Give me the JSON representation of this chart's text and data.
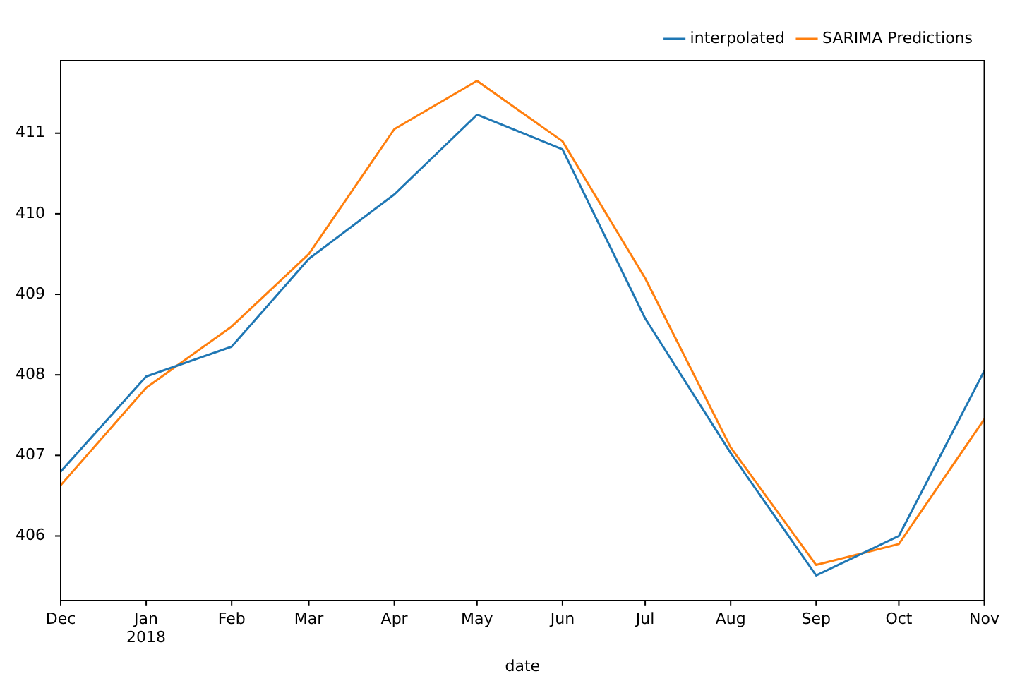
{
  "chart_data": {
    "type": "line",
    "xlabel": "date",
    "x": [
      "2017-12",
      "2018-01",
      "2018-02",
      "2018-03",
      "2018-04",
      "2018-05",
      "2018-06",
      "2018-07",
      "2018-08",
      "2018-09",
      "2018-10",
      "2018-11"
    ],
    "xlim": [
      "2017-12",
      "2018-11"
    ],
    "xticks": [
      {
        "value": "2017-12",
        "label": "Dec"
      },
      {
        "value": "2018-01",
        "label": "Jan 2018"
      },
      {
        "value": "2018-02",
        "label": "Feb"
      },
      {
        "value": "2018-03",
        "label": "Mar"
      },
      {
        "value": "2018-04",
        "label": "Apr"
      },
      {
        "value": "2018-05",
        "label": "May"
      },
      {
        "value": "2018-06",
        "label": "Jun"
      },
      {
        "value": "2018-07",
        "label": "Jul"
      },
      {
        "value": "2018-08",
        "label": "Aug"
      },
      {
        "value": "2018-09",
        "label": "Sep"
      },
      {
        "value": "2018-10",
        "label": "Oct"
      },
      {
        "value": "2018-11",
        "label": "Nov"
      }
    ],
    "series": [
      {
        "name": "interpolated",
        "color": "#1f77b4",
        "values": [
          406.8,
          407.98,
          408.35,
          409.44,
          410.24,
          411.23,
          410.8,
          408.7,
          407.03,
          405.51,
          406.0,
          408.05
        ]
      },
      {
        "name": "SARIMA Predictions",
        "color": "#ff7f0e",
        "values": [
          406.63,
          407.84,
          408.6,
          409.5,
          411.05,
          411.65,
          410.9,
          409.2,
          407.1,
          405.64,
          405.9,
          407.45
        ]
      }
    ],
    "ylim": [
      405.2,
      411.9
    ],
    "yticks": [
      406,
      407,
      408,
      409,
      410,
      411
    ],
    "grid": false,
    "legend": "top right",
    "marker": "none",
    "line_style": "solid"
  }
}
